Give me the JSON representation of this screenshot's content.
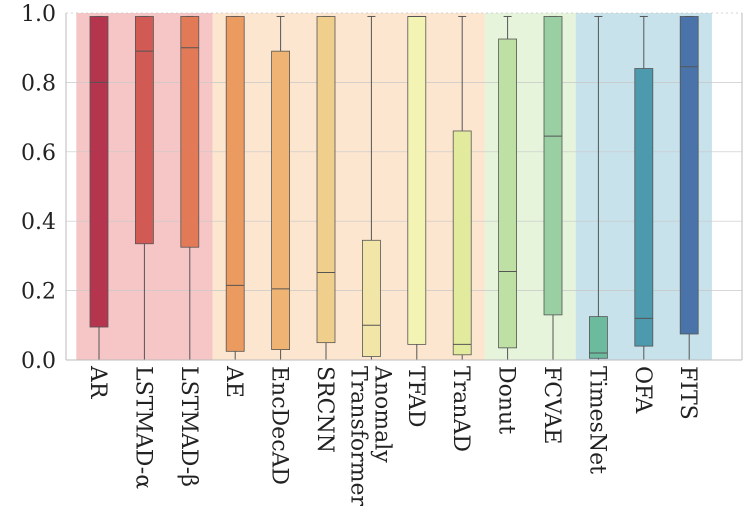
{
  "chart_data": {
    "type": "box",
    "title": "",
    "xlabel": "",
    "ylabel": "",
    "ylim": [
      0,
      1
    ],
    "yticks": [
      {
        "value": 0.0,
        "label": "0.0"
      },
      {
        "value": 0.2,
        "label": "0.2"
      },
      {
        "value": 0.4,
        "label": "0.4"
      },
      {
        "value": 0.6,
        "label": "0.6"
      },
      {
        "value": 0.8,
        "label": "0.8"
      },
      {
        "value": 1.0,
        "label": "1.0"
      }
    ],
    "grid": true,
    "groups": [
      {
        "name": "group-1",
        "start": 0,
        "end": 2,
        "color": "#f6c6c7"
      },
      {
        "name": "group-2",
        "start": 3,
        "end": 8,
        "color": "#fde6cf"
      },
      {
        "name": "group-3",
        "start": 9,
        "end": 10,
        "color": "#e6f4db"
      },
      {
        "name": "group-4",
        "start": 11,
        "end": 13,
        "color": "#c7e2eb"
      }
    ],
    "boxes": [
      {
        "label": "AR",
        "min": 0.0,
        "q1": 0.095,
        "median": 0.8,
        "q3": 0.99,
        "max": 0.99,
        "color": "#b5354f"
      },
      {
        "label": "LSTMAD-α",
        "min": 0.0,
        "q1": 0.335,
        "median": 0.89,
        "q3": 0.99,
        "max": 0.99,
        "color": "#d25a55"
      },
      {
        "label": "LSTMAD-β",
        "min": 0.0,
        "q1": 0.325,
        "median": 0.9,
        "q3": 0.99,
        "max": 0.99,
        "color": "#e27a58"
      },
      {
        "label": "AE",
        "min": 0.0,
        "q1": 0.025,
        "median": 0.215,
        "q3": 0.99,
        "max": 0.99,
        "color": "#eb9a60"
      },
      {
        "label": "EncDecAD",
        "min": 0.0,
        "q1": 0.03,
        "median": 0.205,
        "q3": 0.89,
        "max": 0.99,
        "color": "#efb474"
      },
      {
        "label": "SRCNN",
        "min": 0.0,
        "q1": 0.05,
        "median": 0.252,
        "q3": 0.99,
        "max": 0.99,
        "color": "#f0cf8c"
      },
      {
        "label": "Anomaly Transformer",
        "min": 0.0,
        "q1": 0.01,
        "median": 0.1,
        "q3": 0.345,
        "max": 0.99,
        "color": "#f2e5a8"
      },
      {
        "label": "TFAD",
        "min": 0.0,
        "q1": 0.045,
        "median": 0.99,
        "q3": 0.99,
        "max": 0.99,
        "color": "#f3f3b3"
      },
      {
        "label": "TranAD",
        "min": 0.0,
        "q1": 0.015,
        "median": 0.045,
        "q3": 0.66,
        "max": 0.99,
        "color": "#e2eb9d"
      },
      {
        "label": "Donut",
        "min": 0.0,
        "q1": 0.035,
        "median": 0.255,
        "q3": 0.925,
        "max": 0.99,
        "color": "#bfe0a4"
      },
      {
        "label": "FCVAE",
        "min": 0.0,
        "q1": 0.13,
        "median": 0.645,
        "q3": 0.99,
        "max": 0.99,
        "color": "#99cfa3"
      },
      {
        "label": "TimesNet",
        "min": 0.0,
        "q1": 0.005,
        "median": 0.02,
        "q3": 0.125,
        "max": 0.99,
        "color": "#6cbb9f"
      },
      {
        "label": "OFA",
        "min": 0.0,
        "q1": 0.04,
        "median": 0.12,
        "q3": 0.84,
        "max": 0.99,
        "color": "#4d99ad"
      },
      {
        "label": "FITS",
        "min": 0.0,
        "q1": 0.075,
        "median": 0.845,
        "q3": 0.99,
        "max": 0.99,
        "color": "#4a74a9"
      }
    ]
  }
}
